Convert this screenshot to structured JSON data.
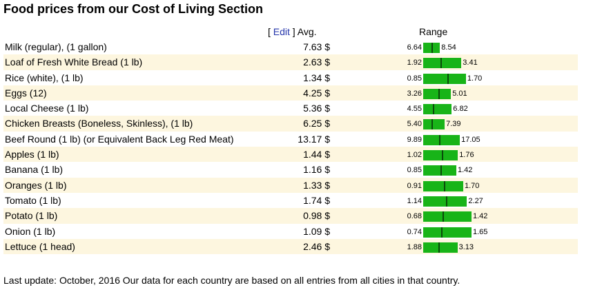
{
  "title": "Food prices from our Cost of Living Section",
  "header": {
    "edit_open": "[ ",
    "edit_label": "Edit",
    "edit_close": " ] Avg.",
    "range_label": "Range"
  },
  "currency": "$",
  "rows": [
    {
      "name": "Milk (regular), (1 gallon)",
      "avg": "7.63 $",
      "avg_value": 7.63,
      "low": "6.64",
      "high": "8.54",
      "low_value": 6.64,
      "high_value": 8.54
    },
    {
      "name": "Loaf of Fresh White Bread (1 lb)",
      "avg": "2.63 $",
      "avg_value": 2.63,
      "low": "1.92",
      "high": "3.41",
      "low_value": 1.92,
      "high_value": 3.41
    },
    {
      "name": "Rice (white), (1 lb)",
      "avg": "1.34 $",
      "avg_value": 1.34,
      "low": "0.85",
      "high": "1.70",
      "low_value": 0.85,
      "high_value": 1.7
    },
    {
      "name": "Eggs (12)",
      "avg": "4.25 $",
      "avg_value": 4.25,
      "low": "3.26",
      "high": "5.01",
      "low_value": 3.26,
      "high_value": 5.01
    },
    {
      "name": "Local Cheese (1 lb)",
      "avg": "5.36 $",
      "avg_value": 5.36,
      "low": "4.55",
      "high": "6.82",
      "low_value": 4.55,
      "high_value": 6.82
    },
    {
      "name": "Chicken Breasts (Boneless, Skinless), (1 lb)",
      "avg": "6.25 $",
      "avg_value": 6.25,
      "low": "5.40",
      "high": "7.39",
      "low_value": 5.4,
      "high_value": 7.39
    },
    {
      "name": "Beef Round (1 lb) (or Equivalent Back Leg Red Meat)",
      "avg": "13.17 $",
      "avg_value": 13.17,
      "low": "9.89",
      "high": "17.05",
      "low_value": 9.89,
      "high_value": 17.05
    },
    {
      "name": "Apples (1 lb)",
      "avg": "1.44 $",
      "avg_value": 1.44,
      "low": "1.02",
      "high": "1.76",
      "low_value": 1.02,
      "high_value": 1.76
    },
    {
      "name": "Banana (1 lb)",
      "avg": "1.16 $",
      "avg_value": 1.16,
      "low": "0.85",
      "high": "1.42",
      "low_value": 0.85,
      "high_value": 1.42
    },
    {
      "name": "Oranges (1 lb)",
      "avg": "1.33 $",
      "avg_value": 1.33,
      "low": "0.91",
      "high": "1.70",
      "low_value": 0.91,
      "high_value": 1.7
    },
    {
      "name": "Tomato (1 lb)",
      "avg": "1.74 $",
      "avg_value": 1.74,
      "low": "1.14",
      "high": "2.27",
      "low_value": 1.14,
      "high_value": 2.27
    },
    {
      "name": "Potato (1 lb)",
      "avg": "0.98 $",
      "avg_value": 0.98,
      "low": "0.68",
      "high": "1.42",
      "low_value": 0.68,
      "high_value": 1.42
    },
    {
      "name": "Onion (1 lb)",
      "avg": "1.09 $",
      "avg_value": 1.09,
      "low": "0.74",
      "high": "1.65",
      "low_value": 0.74,
      "high_value": 1.65
    },
    {
      "name": "Lettuce (1 head)",
      "avg": "2.46 $",
      "avg_value": 2.46,
      "low": "1.88",
      "high": "3.13",
      "low_value": 1.88,
      "high_value": 3.13
    }
  ],
  "colors": {
    "bar": "#18b418",
    "marker": "#0a4a0a",
    "alt_row": "#fdf6df",
    "link": "#2233aa"
  },
  "footer": "Last update: October, 2016 Our data for each country are based on all entries from all cities in that country."
}
